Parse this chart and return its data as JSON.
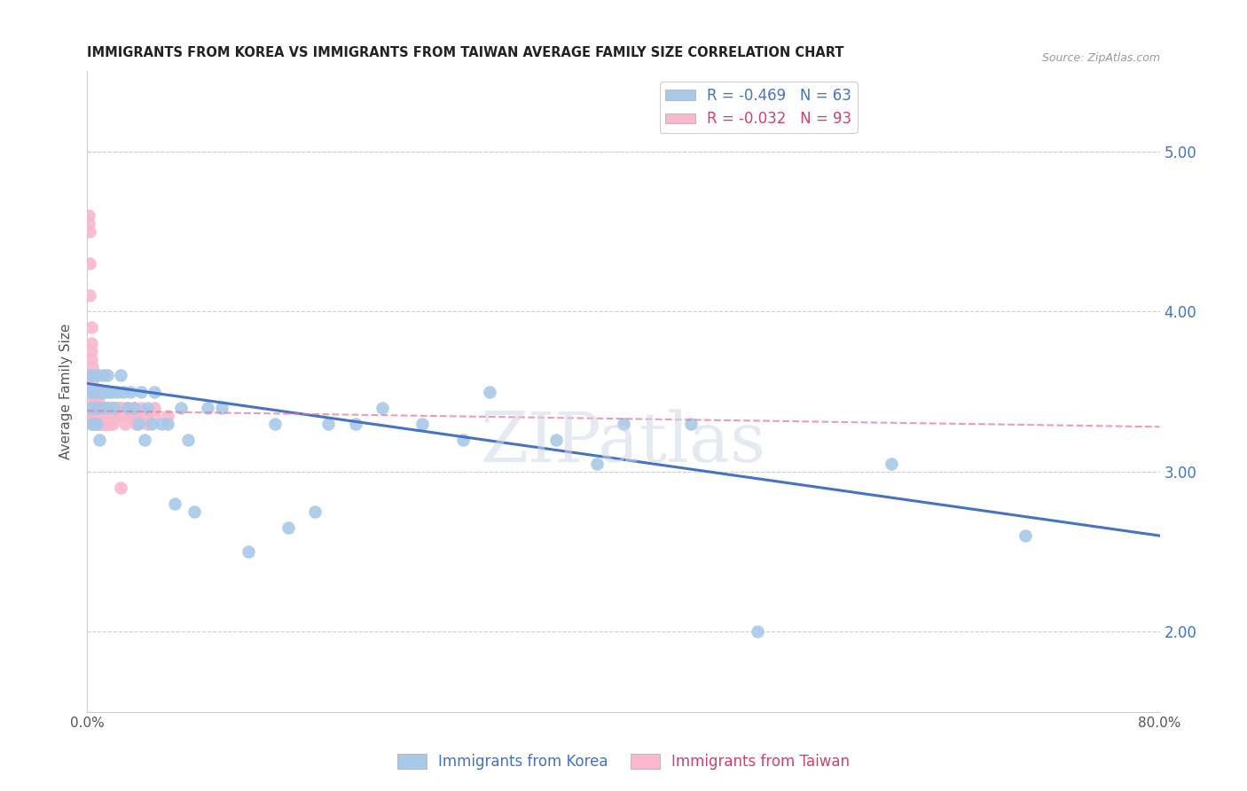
{
  "title": "IMMIGRANTS FROM KOREA VS IMMIGRANTS FROM TAIWAN AVERAGE FAMILY SIZE CORRELATION CHART",
  "source": "Source: ZipAtlas.com",
  "ylabel": "Average Family Size",
  "xlim": [
    0.0,
    0.8
  ],
  "ylim": [
    1.5,
    5.5
  ],
  "yticks": [
    2.0,
    3.0,
    4.0,
    5.0
  ],
  "xticks": [
    0.0,
    0.1,
    0.2,
    0.3,
    0.4,
    0.5,
    0.6,
    0.7,
    0.8
  ],
  "xtick_labels": [
    "0.0%",
    "",
    "",
    "",
    "",
    "",
    "",
    "",
    "80.0%"
  ],
  "ytick_labels_right": [
    "2.00",
    "3.00",
    "4.00",
    "5.00"
  ],
  "korea_color": "#a8c8e8",
  "taiwan_color": "#f9b8cb",
  "trend_korea_color": "#4472c4",
  "trend_taiwan_color": "#e878a0",
  "korea_R": -0.469,
  "korea_N": 63,
  "taiwan_R": -0.032,
  "taiwan_N": 93,
  "watermark": "ZIPatlas",
  "trend_korea_x0": 0.0,
  "trend_korea_y0": 3.55,
  "trend_korea_x1": 0.8,
  "trend_korea_y1": 2.6,
  "trend_taiwan_x0": 0.0,
  "trend_taiwan_y0": 3.38,
  "trend_taiwan_x1": 0.8,
  "trend_taiwan_y1": 3.28,
  "korea_x": [
    0.001,
    0.002,
    0.002,
    0.003,
    0.003,
    0.004,
    0.004,
    0.005,
    0.005,
    0.006,
    0.006,
    0.007,
    0.007,
    0.008,
    0.008,
    0.009,
    0.009,
    0.01,
    0.011,
    0.012,
    0.013,
    0.014,
    0.015,
    0.016,
    0.018,
    0.02,
    0.022,
    0.025,
    0.027,
    0.03,
    0.032,
    0.035,
    0.038,
    0.04,
    0.043,
    0.045,
    0.048,
    0.05,
    0.055,
    0.06,
    0.065,
    0.07,
    0.075,
    0.08,
    0.09,
    0.1,
    0.12,
    0.14,
    0.17,
    0.2,
    0.25,
    0.3,
    0.35,
    0.4,
    0.45,
    0.5,
    0.38,
    0.28,
    0.22,
    0.18,
    0.15,
    0.6,
    0.7
  ],
  "korea_y": [
    3.5,
    3.6,
    3.4,
    3.5,
    3.3,
    3.6,
    3.4,
    3.5,
    3.3,
    3.6,
    3.4,
    3.5,
    3.3,
    3.6,
    3.4,
    3.5,
    3.2,
    3.5,
    3.4,
    3.6,
    3.5,
    3.4,
    3.6,
    3.5,
    3.5,
    3.4,
    3.5,
    3.6,
    3.5,
    3.4,
    3.5,
    3.4,
    3.3,
    3.5,
    3.2,
    3.4,
    3.3,
    3.5,
    3.3,
    3.3,
    2.8,
    3.4,
    3.2,
    2.75,
    3.4,
    3.4,
    2.5,
    3.3,
    2.75,
    3.3,
    3.3,
    3.5,
    3.2,
    3.3,
    3.3,
    2.0,
    3.05,
    3.2,
    3.4,
    3.3,
    2.65,
    3.05,
    2.6
  ],
  "taiwan_x": [
    0.001,
    0.001,
    0.002,
    0.002,
    0.002,
    0.003,
    0.003,
    0.003,
    0.003,
    0.004,
    0.004,
    0.004,
    0.005,
    0.005,
    0.005,
    0.005,
    0.006,
    0.006,
    0.006,
    0.006,
    0.007,
    0.007,
    0.007,
    0.008,
    0.008,
    0.008,
    0.009,
    0.009,
    0.009,
    0.009,
    0.01,
    0.01,
    0.01,
    0.011,
    0.011,
    0.012,
    0.012,
    0.013,
    0.013,
    0.013,
    0.014,
    0.014,
    0.015,
    0.015,
    0.016,
    0.016,
    0.017,
    0.017,
    0.018,
    0.018,
    0.019,
    0.019,
    0.02,
    0.02,
    0.021,
    0.022,
    0.023,
    0.024,
    0.025,
    0.026,
    0.027,
    0.028,
    0.03,
    0.032,
    0.035,
    0.038,
    0.04,
    0.045,
    0.05,
    0.06,
    0.007,
    0.008,
    0.009,
    0.01,
    0.011,
    0.012,
    0.013,
    0.014,
    0.015,
    0.016,
    0.017,
    0.018,
    0.019,
    0.003,
    0.004,
    0.005,
    0.025,
    0.028,
    0.032,
    0.036,
    0.04,
    0.045,
    0.05
  ],
  "taiwan_y": [
    4.6,
    4.55,
    4.5,
    4.3,
    4.1,
    3.9,
    3.8,
    3.75,
    3.7,
    3.65,
    3.6,
    3.55,
    3.5,
    3.45,
    3.4,
    3.35,
    3.5,
    3.45,
    3.4,
    3.35,
    3.4,
    3.35,
    3.3,
    3.45,
    3.4,
    3.35,
    3.4,
    3.35,
    3.3,
    3.35,
    3.4,
    3.35,
    3.3,
    3.4,
    3.35,
    3.4,
    3.35,
    3.4,
    3.35,
    3.3,
    3.4,
    3.35,
    3.4,
    3.35,
    3.4,
    3.35,
    3.4,
    3.35,
    3.4,
    3.35,
    3.4,
    3.35,
    3.4,
    3.35,
    3.4,
    3.35,
    3.4,
    3.35,
    3.4,
    3.35,
    3.4,
    3.35,
    3.4,
    3.35,
    3.4,
    3.35,
    3.4,
    3.35,
    3.4,
    3.35,
    3.3,
    3.35,
    3.3,
    3.35,
    3.3,
    3.35,
    3.3,
    3.35,
    3.3,
    3.35,
    3.3,
    3.35,
    3.3,
    3.35,
    3.3,
    3.35,
    2.9,
    3.3,
    3.35,
    3.3,
    3.35,
    3.3,
    3.35
  ]
}
